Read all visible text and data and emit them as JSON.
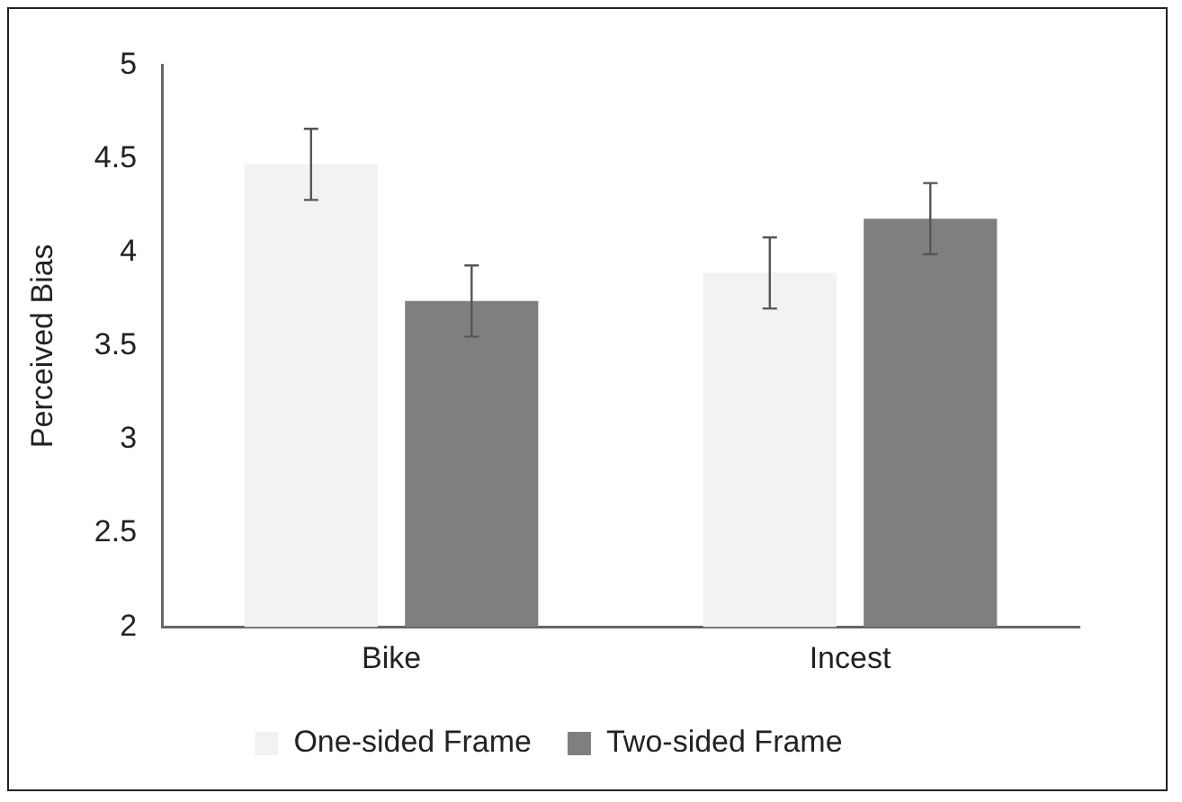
{
  "chart_data": {
    "type": "bar",
    "ylabel": "Perceived Bias",
    "categories": [
      "Bike",
      "Incest"
    ],
    "series": [
      {
        "name": "One-sided Frame",
        "color": "#f2f2f2",
        "values": [
          4.47,
          3.89
        ],
        "errors": [
          0.19,
          0.19
        ]
      },
      {
        "name": "Two-sided Frame",
        "color": "#7f7f7f",
        "values": [
          3.74,
          4.18
        ],
        "errors": [
          0.19,
          0.19
        ]
      }
    ],
    "ylim": [
      2,
      5
    ],
    "yticks": [
      2,
      2.5,
      3,
      3.5,
      4,
      4.5,
      5
    ],
    "grid": false,
    "legend": "bottom"
  }
}
